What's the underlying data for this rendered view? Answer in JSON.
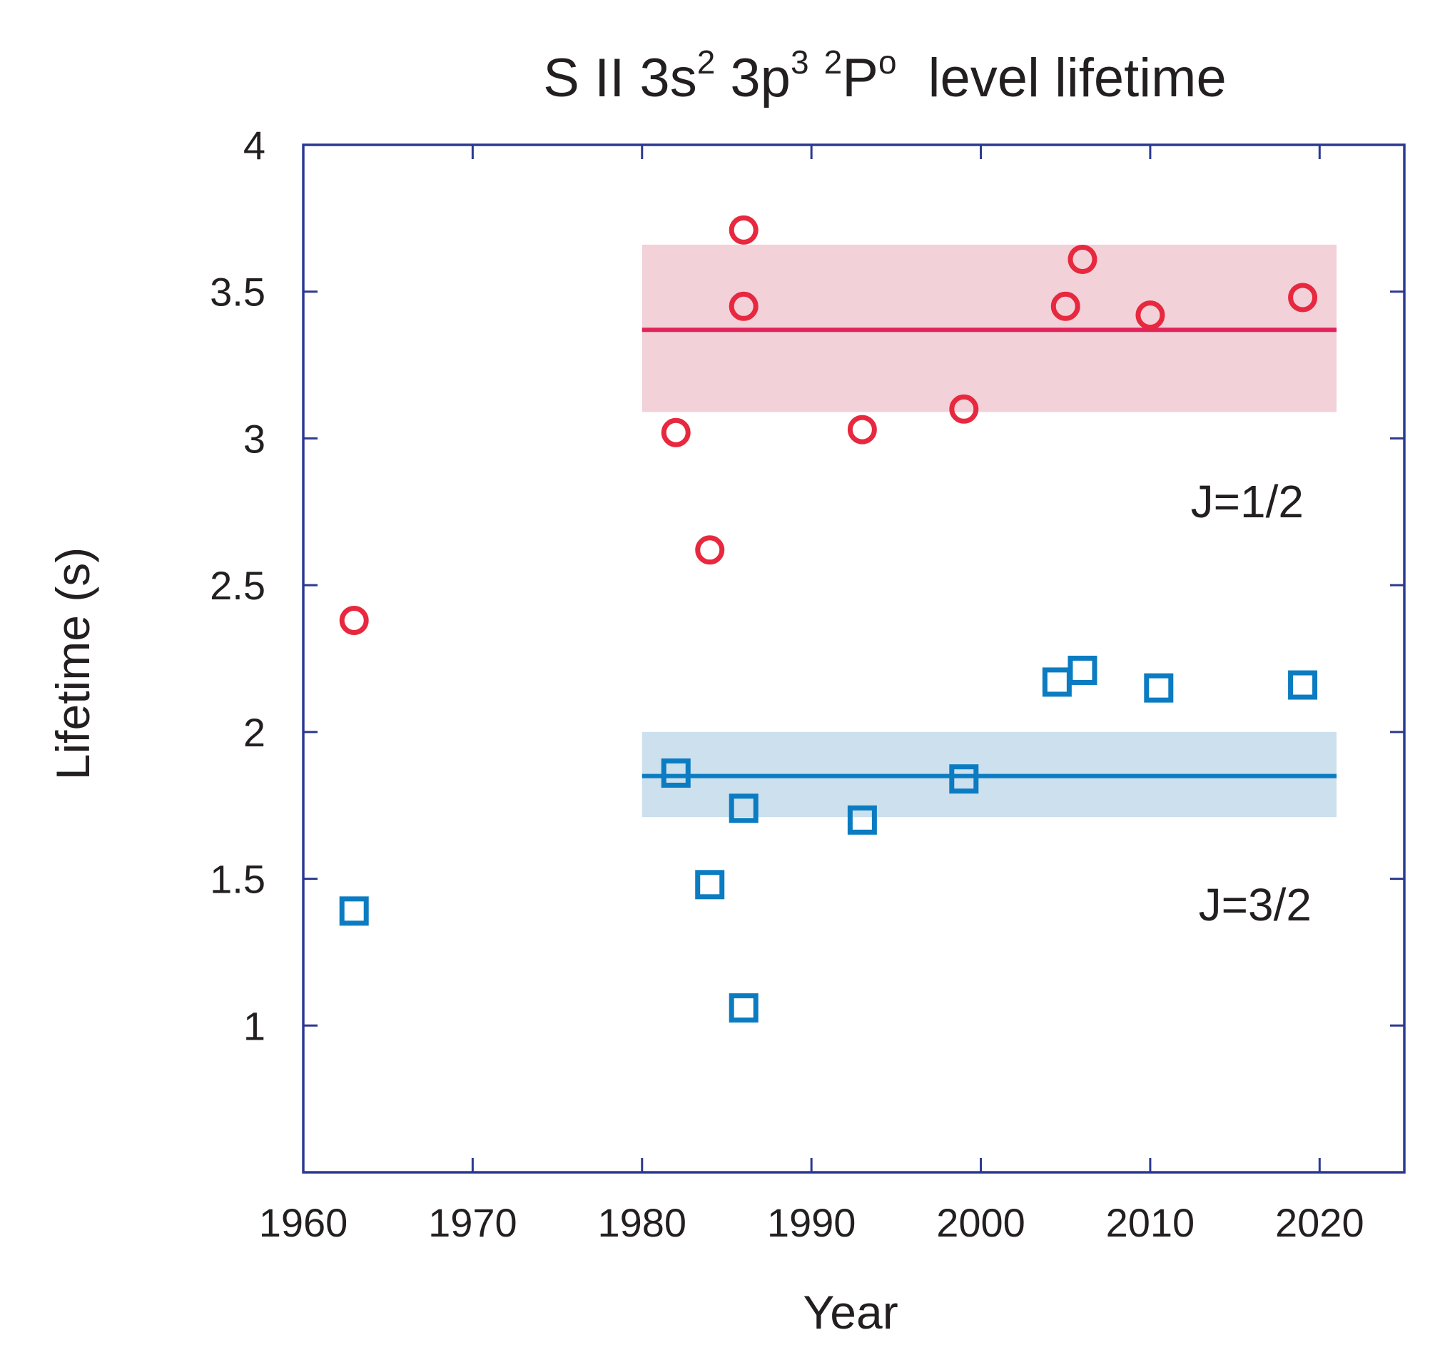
{
  "chart_data": {
    "type": "scatter",
    "title": {
      "prefix": "S II 3s",
      "sup1": "2",
      "mid1": " 3p",
      "sup2": "3",
      "mid2": " ",
      "sup3": "2",
      "term": "P",
      "sup4": "o",
      "suffix": "level lifetime"
    },
    "xlabel": "Year",
    "ylabel": "Lifetime (s)",
    "xlim": [
      1960,
      2025
    ],
    "ylim": [
      0.5,
      4
    ],
    "xticks": [
      1960,
      1970,
      1980,
      1990,
      2000,
      2010,
      2020
    ],
    "yticks": [
      1,
      1.5,
      2,
      2.5,
      3,
      3.5,
      4
    ],
    "ytick_labels": [
      "1",
      "1.5",
      "2",
      "2.5",
      "3",
      "3.5",
      "4"
    ],
    "grid": false,
    "colors": {
      "axis": "#2b3990",
      "j12": "#e8283e",
      "j12_line": "#e0245a",
      "j12_band": "#f2d1d9",
      "j32": "#0b7cc1",
      "j32_band": "#cce0ee",
      "text": "#231f20"
    },
    "series": [
      {
        "name": "J=1/2",
        "marker": "circle",
        "label": "J=1/2",
        "mean": 3.37,
        "band": [
          3.09,
          3.66
        ],
        "band_x": [
          1980,
          2021
        ],
        "x": [
          1963,
          1982,
          1984,
          1986,
          1986,
          1993,
          1999,
          2005,
          2006,
          2010,
          2019
        ],
        "y": [
          2.38,
          3.02,
          2.62,
          3.71,
          3.45,
          3.03,
          3.1,
          3.45,
          3.61,
          3.42,
          3.48
        ]
      },
      {
        "name": "J=3/2",
        "marker": "square",
        "label": "J=3/2",
        "mean": 1.85,
        "band": [
          1.71,
          2.0
        ],
        "band_x": [
          1980,
          2021
        ],
        "x": [
          1963,
          1982,
          1984,
          1986,
          1986,
          1993,
          1999,
          2004.5,
          2006,
          2010.5,
          2019
        ],
        "y": [
          1.39,
          1.86,
          1.48,
          1.74,
          1.06,
          1.7,
          1.84,
          2.17,
          2.21,
          2.15,
          2.16
        ]
      }
    ]
  }
}
